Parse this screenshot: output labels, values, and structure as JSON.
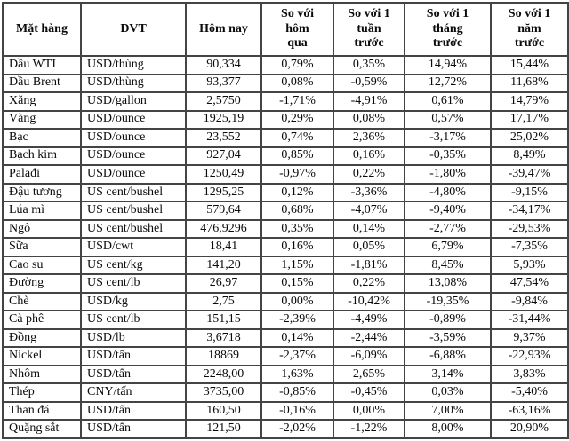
{
  "colors": {
    "background": "#ffffff",
    "border": "#444444",
    "text": "#0a0a0a"
  },
  "table": {
    "columns": [
      {
        "label": "Mặt hàng",
        "cell_name": "cell-commodity-name"
      },
      {
        "label": "ĐVT",
        "cell_name": "cell-unit"
      },
      {
        "label": "Hôm nay",
        "cell_name": "cell-price-today"
      },
      {
        "label": "So với\nhôm\nqua",
        "cell_name": "cell-change-vs-yesterday"
      },
      {
        "label": "So với 1\ntuần\ntrước",
        "cell_name": "cell-change-vs-1-week"
      },
      {
        "label": "So với 1\ntháng\ntrước",
        "cell_name": "cell-change-vs-1-month"
      },
      {
        "label": "So với 1\nnăm\ntrước",
        "cell_name": "cell-change-vs-1-year"
      }
    ],
    "rows": [
      [
        "Dầu WTI",
        "USD/thùng",
        "90,334",
        "0,79%",
        "0,35%",
        "14,94%",
        "15,44%"
      ],
      [
        "Dầu Brent",
        "USD/thùng",
        "93,377",
        "0,08%",
        "-0,59%",
        "12,72%",
        "11,68%"
      ],
      [
        "Xăng",
        "USD/gallon",
        "2,5750",
        "-1,71%",
        "-4,91%",
        "0,61%",
        "14,79%"
      ],
      [
        "Vàng",
        "USD/ounce",
        "1925,19",
        "0,29%",
        "0,08%",
        "0,57%",
        "17,17%"
      ],
      [
        "Bạc",
        "USD/ounce",
        "23,552",
        "0,74%",
        "2,36%",
        "-3,17%",
        "25,02%"
      ],
      [
        "Bạch kim",
        "USD/ounce",
        "927,04",
        "0,85%",
        "0,16%",
        "-0,35%",
        "8,49%"
      ],
      [
        "Palađi",
        "USD/ounce",
        "1250,49",
        "-0,97%",
        "0,22%",
        "-1,80%",
        "-39,47%"
      ],
      [
        "Đậu tương",
        "US cent/bushel",
        "1295,25",
        "0,12%",
        "-3,36%",
        "-4,80%",
        "-9,15%"
      ],
      [
        "Lúa mì",
        "US cent/bushel",
        "579,64",
        "0,68%",
        "-4,07%",
        "-9,40%",
        "-34,17%"
      ],
      [
        "Ngô",
        "US cent/bushel",
        "476,9296",
        "0,35%",
        "0,14%",
        "-2,77%",
        "-29,53%"
      ],
      [
        "Sữa",
        "USD/cwt",
        "18,41",
        "0,16%",
        "0,05%",
        "6,79%",
        "-7,35%"
      ],
      [
        "Cao su",
        "US cent/kg",
        "141,20",
        "1,15%",
        "-1,81%",
        "8,45%",
        "5,93%"
      ],
      [
        "Đường",
        "US cent/lb",
        "26,97",
        "0,15%",
        "0,22%",
        "13,08%",
        "47,54%"
      ],
      [
        "Chè",
        "USD/kg",
        "2,75",
        "0,00%",
        "-10,42%",
        "-19,35%",
        "-9,84%"
      ],
      [
        "Cà phê",
        "US cent/lb",
        "151,15",
        "-2,39%",
        "-4,49%",
        "-0,89%",
        "-31,44%"
      ],
      [
        "Đồng",
        "USD/lb",
        "3,6718",
        "0,14%",
        "-2,44%",
        "-3,59%",
        "9,37%"
      ],
      [
        "Nickel",
        "USD/tấn",
        "18869",
        "-2,37%",
        "-6,09%",
        "-6,88%",
        "-22,93%"
      ],
      [
        "Nhôm",
        "USD/tấn",
        "2248,00",
        "1,63%",
        "2,65%",
        "3,14%",
        "3,83%"
      ],
      [
        "Thép",
        "CNY/tấn",
        "3735,00",
        "-0,85%",
        "-0,45%",
        "0,03%",
        "-5,40%"
      ],
      [
        "Than đá",
        "USD/tấn",
        "160,50",
        "-0,16%",
        "0,00%",
        "7,00%",
        "-63,16%"
      ],
      [
        "Quặng sắt",
        "USD/tấn",
        "121,50",
        "-2,02%",
        "-1,22%",
        "8,00%",
        "20,90%"
      ]
    ]
  }
}
